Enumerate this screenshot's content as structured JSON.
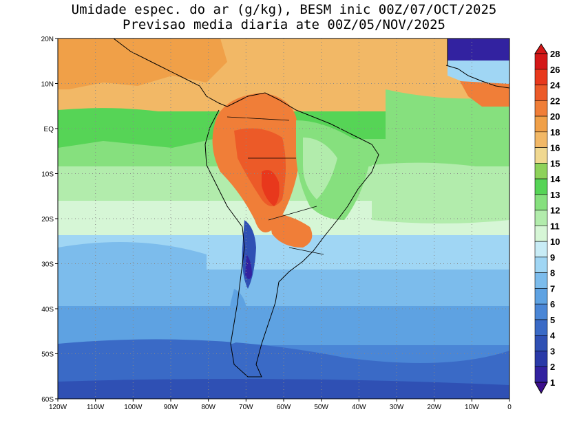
{
  "title_line1": "Umidade espec. do ar (g/kg), BESM inic 00Z/07/OCT/2025",
  "title_line2": "Previsao media diaria ate 00Z/05/NOV/2025",
  "lat_labels": [
    "20N",
    "10N",
    "EQ",
    "10S",
    "20S",
    "30S",
    "40S",
    "50S",
    "60S"
  ],
  "lon_labels": [
    "120W",
    "110W",
    "100W",
    "90W",
    "80W",
    "70W",
    "60W",
    "50W",
    "40W",
    "30W",
    "20W",
    "10W",
    "0"
  ],
  "colorbar_labels": [
    "1",
    "2",
    "3",
    "4",
    "5",
    "6",
    "7",
    "8",
    "9",
    "10",
    "11",
    "12",
    "13",
    "14",
    "15",
    "16",
    "18",
    "20",
    "22",
    "24",
    "26",
    "28"
  ],
  "colors": {
    "c1": "#3c0f8c",
    "c2": "#3222a0",
    "c3": "#2a3aa8",
    "c4": "#2f50b4",
    "c5": "#3a6ac6",
    "c6": "#4a86d6",
    "c7": "#5ea2e2",
    "c8": "#7cbcec",
    "c9": "#a0d6f4",
    "c10": "#c8ecf6",
    "c11": "#d6f6d6",
    "c12": "#b2ecac",
    "c13": "#86e07e",
    "c14": "#56d456",
    "c15": "#8ed25a",
    "c16": "#f0d890",
    "c18": "#f2b866",
    "c20": "#f0a048",
    "c22": "#f07e38",
    "c24": "#ec5a28",
    "c26": "#e8381c",
    "c28": "#d41818"
  }
}
